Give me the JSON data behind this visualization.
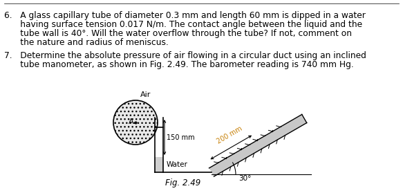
{
  "bg_color": "#ffffff",
  "text_color": "#000000",
  "orange_color": "#c8820a",
  "fig_caption": "Fig. 2.49",
  "label_air": "Air",
  "label_water": "Water",
  "label_150": "150 mm",
  "label_200": "200 mm",
  "label_angle": "30°",
  "label_A": "A",
  "line6_1": "6.   A glass capillary tube of diameter 0.3 mm and length 60 mm is dipped in a water",
  "line6_2": "      having surface tension 0.017 N/m. The contact angle between the liquid and the",
  "line6_3": "      tube wall is 40°. Will the water overflow through the tube? If not, comment on",
  "line6_4": "      the nature and radius of meniscus.",
  "line7_1": "7.   Determine the absolute pressure of air flowing in a circular duct using an inclined",
  "line7_2": "      tube manometer, as shown in Fig. 2.49. The barometer reading is 740 mm Hg."
}
